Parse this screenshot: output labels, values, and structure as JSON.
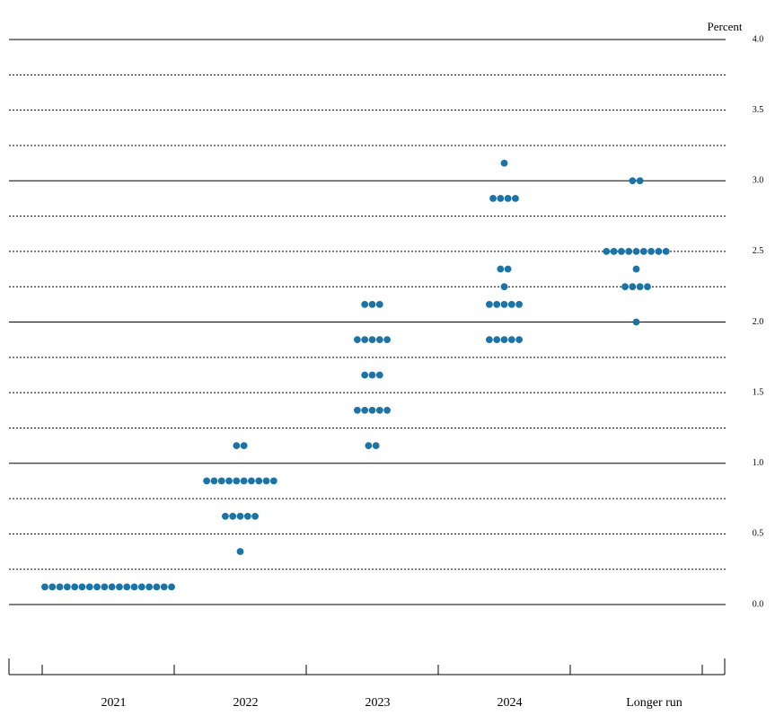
{
  "chart_data": {
    "type": "dot",
    "y_label": "Percent",
    "categories": [
      "2021",
      "2022",
      "2023",
      "2024",
      "Longer run"
    ],
    "dots": [
      [
        {
          "value": 0.125,
          "count": 18
        }
      ],
      [
        {
          "value": 1.125,
          "count": 2
        },
        {
          "value": 0.875,
          "count": 10
        },
        {
          "value": 0.625,
          "count": 5
        },
        {
          "value": 0.375,
          "count": 1
        }
      ],
      [
        {
          "value": 2.125,
          "count": 3
        },
        {
          "value": 1.875,
          "count": 5
        },
        {
          "value": 1.625,
          "count": 3
        },
        {
          "value": 1.375,
          "count": 5
        },
        {
          "value": 1.125,
          "count": 2
        }
      ],
      [
        {
          "value": 3.125,
          "count": 1
        },
        {
          "value": 2.875,
          "count": 4
        },
        {
          "value": 2.375,
          "count": 2
        },
        {
          "value": 2.25,
          "count": 1
        },
        {
          "value": 2.125,
          "count": 5
        },
        {
          "value": 1.875,
          "count": 5
        }
      ],
      [
        {
          "value": 3.0,
          "count": 2
        },
        {
          "value": 2.5,
          "count": 9
        },
        {
          "value": 2.375,
          "count": 1
        },
        {
          "value": 2.25,
          "count": 4
        },
        {
          "value": 2.0,
          "count": 1
        }
      ]
    ],
    "color": "#1b74a5",
    "ylim": [
      0,
      4
    ],
    "yticks": [
      {
        "value": 0,
        "label": "0.0"
      },
      {
        "value": 0.5,
        "label": "0.5"
      },
      {
        "value": 1,
        "label": "1.0"
      },
      {
        "value": 1.5,
        "label": "1.5"
      },
      {
        "value": 2,
        "label": "2.0"
      },
      {
        "value": 2.5,
        "label": "2.5"
      },
      {
        "value": 3,
        "label": "3.0"
      },
      {
        "value": 3.5,
        "label": "3.5"
      },
      {
        "value": 4,
        "label": "4.0"
      }
    ],
    "grid_lines": [
      0,
      0.25,
      0.5,
      0.75,
      1,
      1.25,
      1.5,
      1.75,
      2,
      2.25,
      2.5,
      2.75,
      3,
      3.25,
      3.5,
      3.75,
      4
    ],
    "grid": true
  }
}
